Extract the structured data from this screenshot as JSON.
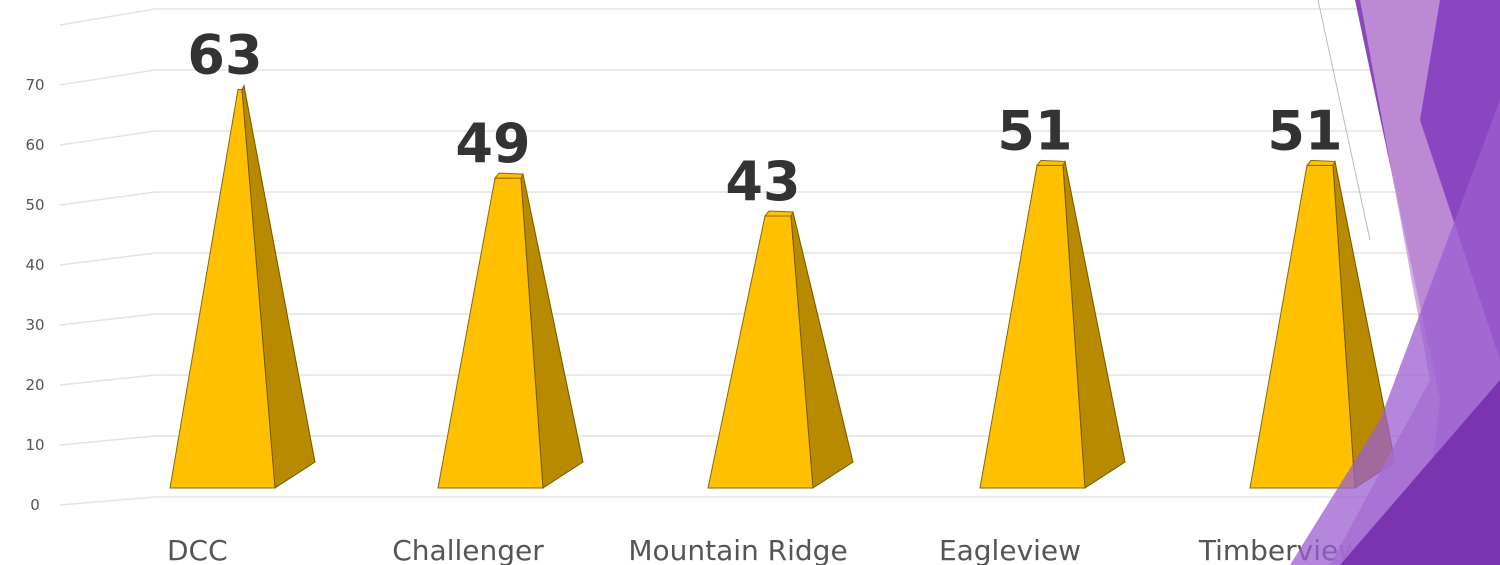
{
  "chart_data": {
    "type": "bar",
    "categories": [
      "DCC",
      "Challenger",
      "Mountain Ridge",
      "Eagleview",
      "Timberview"
    ],
    "values": [
      63,
      49,
      43,
      51,
      51
    ],
    "color": "#ffc000",
    "ylim": [
      0,
      80
    ],
    "yticks": [
      0,
      10,
      20,
      30,
      40,
      50,
      60,
      70
    ],
    "grid": true
  }
}
